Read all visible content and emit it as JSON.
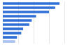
{
  "chart_data": {
    "type": "bar",
    "orientation": "horizontal",
    "categories": [
      null,
      null,
      null,
      null,
      null,
      null,
      null,
      null,
      null,
      null
    ],
    "values": [
      92,
      85,
      75,
      54,
      47,
      43,
      33,
      30,
      23,
      20
    ],
    "colors": [
      "#2f6fd6",
      "#2f6fd6",
      "#2f6fd6",
      "#2f6fd6",
      "#2f6fd6",
      "#2f6fd6",
      "#2f6fd6",
      "#2f6fd6",
      "#2f6fd6",
      "#a9c4ee"
    ],
    "xlim": [
      0,
      100
    ],
    "xticks": [
      0,
      25,
      50,
      75,
      100
    ],
    "grid": true,
    "tick_labels": false
  }
}
